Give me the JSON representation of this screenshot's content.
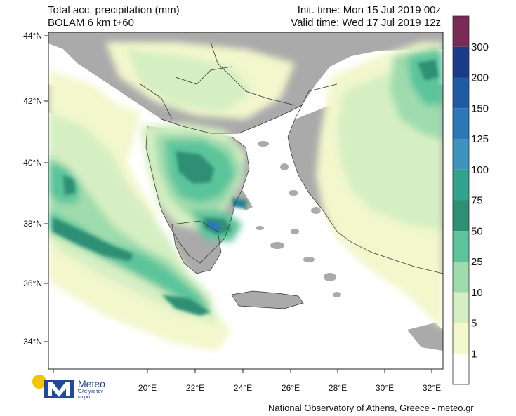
{
  "header": {
    "title": "Total acc. precipitation (mm)",
    "model": "BOLAM 6 km t+60",
    "init_time": "Init. time: Mon 15 Jul 2019 00z",
    "valid_time": "Valid time: Wed 17 Jul 2019 12z"
  },
  "axes": {
    "lat_labels": [
      "44°N",
      "42°N",
      "40°N",
      "38°N",
      "36°N",
      "34°N"
    ],
    "lon_labels": [
      "20°E",
      "22°E",
      "24°E",
      "26°E",
      "28°E",
      "30°E",
      "32°E"
    ]
  },
  "colorbar": {
    "labels": [
      "300",
      "200",
      "150",
      "125",
      "100",
      "75",
      "50",
      "25",
      "10",
      "5",
      "1"
    ],
    "colors": [
      "#7a2a55",
      "#1b3a8a",
      "#1f5aa5",
      "#2a78b8",
      "#3f94bf",
      "#32a48e",
      "#2e8f74",
      "#5cc49b",
      "#9fdcad",
      "#d5efc3",
      "#f2f7cc",
      "#ffffff"
    ]
  },
  "colors": {
    "land_dry": "#aaaaaa",
    "sea": "#ffffff",
    "borders": "#333333"
  },
  "logo": {
    "name": "Meteo",
    "tagline": "Όλα για τον καιρό"
  },
  "footer": "National Observatory of Athens, Greece - meteo.gr"
}
